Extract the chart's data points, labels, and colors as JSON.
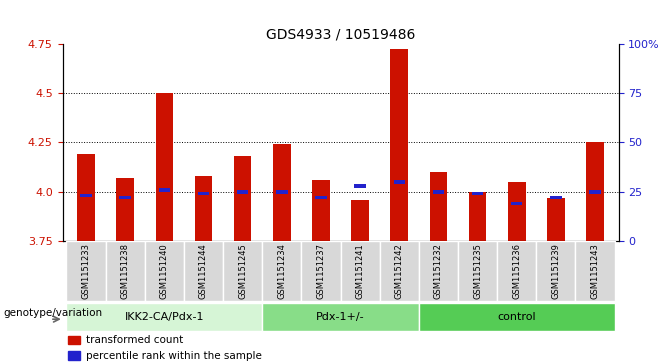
{
  "title": "GDS4933 / 10519486",
  "samples": [
    "GSM1151233",
    "GSM1151238",
    "GSM1151240",
    "GSM1151244",
    "GSM1151245",
    "GSM1151234",
    "GSM1151237",
    "GSM1151241",
    "GSM1151242",
    "GSM1151232",
    "GSM1151235",
    "GSM1151236",
    "GSM1151239",
    "GSM1151243"
  ],
  "red_values": [
    4.19,
    4.07,
    4.5,
    4.08,
    4.18,
    4.24,
    4.06,
    3.96,
    4.72,
    4.1,
    4.0,
    4.05,
    3.97,
    4.25
  ],
  "blue_values": [
    3.98,
    3.97,
    4.01,
    3.99,
    4.0,
    4.0,
    3.97,
    4.03,
    4.05,
    4.0,
    3.99,
    3.94,
    3.97,
    4.0
  ],
  "ylim_left": [
    3.75,
    4.75
  ],
  "ylim_right": [
    0,
    100
  ],
  "yticks_left": [
    3.75,
    4.0,
    4.25,
    4.5,
    4.75
  ],
  "yticks_right": [
    0,
    25,
    50,
    75,
    100
  ],
  "ytick_labels_right": [
    "0",
    "25",
    "50",
    "75",
    "100%"
  ],
  "groups": [
    {
      "label": "IKK2-CA/Pdx-1",
      "start": 0,
      "end": 5,
      "color": "#d6f5d6"
    },
    {
      "label": "Pdx-1+/-",
      "start": 5,
      "end": 9,
      "color": "#88dd88"
    },
    {
      "label": "control",
      "start": 9,
      "end": 14,
      "color": "#55cc55"
    }
  ],
  "bar_color_red": "#cc1100",
  "bar_color_blue": "#2222cc",
  "bar_bottom": 3.75,
  "label_color_left": "#cc1100",
  "label_color_right": "#2222cc",
  "xlabel_group": "genotype/variation",
  "legend_red": "transformed count",
  "legend_blue": "percentile rank within the sample",
  "grid_dotted": [
    4.0,
    4.25,
    4.5
  ],
  "bar_width": 0.45
}
